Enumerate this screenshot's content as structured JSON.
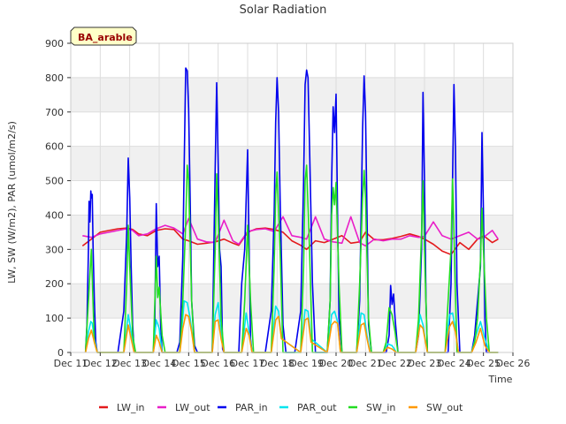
{
  "chart_data": {
    "type": "line",
    "title": "Solar Radiation",
    "xlabel": "Time",
    "ylabel": "LW, SW (W/m2), PAR (umol/m2/s)",
    "site_label": "BA_arable",
    "xlim": [
      11,
      26
    ],
    "ylim": [
      0,
      900
    ],
    "x_ticks": [
      11,
      12,
      13,
      14,
      15,
      16,
      17,
      18,
      19,
      20,
      21,
      22,
      23,
      24,
      25,
      26
    ],
    "x_tick_labels": [
      "Dec 11",
      "Dec 12",
      "Dec 13",
      "Dec 14",
      "Dec 15",
      "Dec 16",
      "Dec 17",
      "Dec 18",
      "Dec 19",
      "Dec 20",
      "Dec 21",
      "Dec 22",
      "Dec 23",
      "Dec 24",
      "Dec 25",
      "Dec 26"
    ],
    "y_ticks": [
      0,
      100,
      200,
      300,
      400,
      500,
      600,
      700,
      800,
      900
    ],
    "y_tick_labels": [
      "0",
      "100",
      "200",
      "300",
      "400",
      "500",
      "600",
      "700",
      "800",
      "900"
    ],
    "grid_bands": true,
    "legend_position": "bottom",
    "series": [
      {
        "name": "LW_in",
        "color": "#e31a1c",
        "x": [
          11.4,
          11.7,
          12.0,
          12.3,
          12.6,
          12.9,
          13.1,
          13.3,
          13.6,
          13.9,
          14.2,
          14.5,
          14.8,
          15.0,
          15.3,
          15.6,
          15.9,
          16.2,
          16.5,
          16.7,
          17.0,
          17.3,
          17.6,
          17.9,
          18.2,
          18.5,
          18.8,
          19.0,
          19.3,
          19.6,
          19.9,
          20.2,
          20.5,
          20.8,
          21.0,
          21.3,
          21.6,
          21.9,
          22.2,
          22.5,
          22.8,
          23.0,
          23.3,
          23.6,
          23.9,
          24.2,
          24.5,
          24.8,
          25.0,
          25.3,
          25.5
        ],
        "y": [
          310,
          330,
          350,
          355,
          360,
          362,
          358,
          345,
          340,
          355,
          360,
          358,
          330,
          325,
          315,
          318,
          322,
          330,
          318,
          312,
          350,
          360,
          362,
          358,
          350,
          325,
          312,
          300,
          325,
          320,
          330,
          340,
          318,
          322,
          350,
          328,
          328,
          332,
          338,
          345,
          338,
          330,
          315,
          295,
          285,
          320,
          300,
          330,
          340,
          320,
          330
        ]
      },
      {
        "name": "LW_out",
        "color": "#e91ec8",
        "x": [
          11.4,
          11.7,
          12.0,
          12.3,
          12.6,
          12.9,
          13.1,
          13.3,
          13.6,
          13.9,
          14.2,
          14.5,
          14.8,
          15.0,
          15.3,
          15.6,
          15.9,
          16.2,
          16.5,
          16.7,
          17.0,
          17.3,
          17.6,
          17.9,
          18.2,
          18.5,
          18.8,
          19.0,
          19.3,
          19.6,
          19.9,
          20.2,
          20.5,
          20.8,
          21.0,
          21.3,
          21.6,
          21.9,
          22.2,
          22.5,
          22.8,
          23.0,
          23.3,
          23.6,
          23.9,
          24.2,
          24.5,
          24.8,
          25.0,
          25.3,
          25.5
        ],
        "y": [
          340,
          335,
          345,
          350,
          355,
          360,
          355,
          340,
          345,
          360,
          370,
          362,
          345,
          390,
          330,
          322,
          320,
          385,
          325,
          315,
          352,
          358,
          360,
          352,
          395,
          340,
          335,
          330,
          395,
          330,
          322,
          318,
          395,
          320,
          310,
          330,
          325,
          330,
          330,
          340,
          335,
          338,
          380,
          340,
          330,
          340,
          350,
          330,
          335,
          355,
          330
        ]
      },
      {
        "name": "PAR_in",
        "color": "#0000ee",
        "x": [
          11.5,
          11.55,
          11.6,
          11.62,
          11.65,
          11.68,
          11.7,
          11.73,
          11.76,
          11.8,
          11.85,
          11.9,
          12.6,
          12.8,
          12.9,
          12.95,
          13.0,
          13.05,
          13.1,
          13.15,
          13.2,
          13.3,
          13.4,
          13.8,
          13.85,
          13.9,
          13.95,
          14.0,
          14.05,
          14.1,
          14.2,
          14.6,
          14.7,
          14.8,
          14.85,
          14.9,
          14.95,
          15.0,
          15.05,
          15.1,
          15.2,
          15.3,
          15.4,
          15.8,
          15.85,
          15.9,
          15.95,
          16.0,
          16.05,
          16.1,
          16.15,
          16.2,
          16.3,
          16.7,
          16.8,
          16.9,
          17.0,
          17.05,
          17.1,
          17.15,
          17.2,
          17.3,
          17.6,
          17.8,
          17.9,
          17.95,
          18.0,
          18.05,
          18.1,
          18.2,
          18.3,
          18.6,
          18.8,
          18.9,
          18.95,
          19.0,
          19.05,
          19.1,
          19.2,
          19.3,
          19.6,
          19.7,
          19.8,
          19.85,
          19.9,
          19.95,
          20.0,
          20.05,
          20.1,
          20.2,
          20.3,
          20.6,
          20.7,
          20.8,
          20.9,
          20.95,
          21.0,
          21.05,
          21.1,
          21.2,
          21.3,
          21.6,
          21.7,
          21.8,
          21.85,
          21.9,
          21.95,
          22.0,
          22.1,
          22.2,
          22.6,
          22.7,
          22.8,
          22.9,
          22.95,
          23.0,
          23.05,
          23.1,
          23.2,
          23.5,
          23.6,
          23.7,
          23.8,
          23.9,
          23.95,
          24.0,
          24.05,
          24.1,
          24.2,
          24.5,
          24.6,
          24.7,
          24.8,
          24.9,
          24.95,
          25.0,
          25.05,
          25.1,
          25.2,
          25.4,
          25.5
        ],
        "y": [
          0,
          80,
          300,
          440,
          380,
          470,
          450,
          460,
          300,
          150,
          30,
          0,
          0,
          120,
          350,
          566,
          450,
          250,
          80,
          5,
          0,
          0,
          0,
          0,
          80,
          433,
          250,
          280,
          80,
          0,
          0,
          0,
          30,
          280,
          550,
          828,
          820,
          710,
          450,
          150,
          20,
          0,
          0,
          0,
          280,
          533,
          785,
          550,
          300,
          250,
          10,
          0,
          0,
          0,
          200,
          300,
          590,
          300,
          40,
          0,
          0,
          0,
          0,
          120,
          400,
          670,
          800,
          700,
          450,
          80,
          0,
          0,
          120,
          500,
          780,
          822,
          800,
          600,
          200,
          0,
          0,
          0,
          150,
          500,
          715,
          640,
          752,
          400,
          100,
          0,
          0,
          0,
          0,
          150,
          650,
          805,
          700,
          400,
          80,
          0,
          0,
          0,
          0,
          50,
          195,
          140,
          170,
          100,
          0,
          0,
          0,
          0,
          50,
          300,
          757,
          500,
          150,
          0,
          0,
          0,
          0,
          0,
          0,
          200,
          500,
          780,
          600,
          200,
          0,
          0,
          0,
          50,
          150,
          250,
          640,
          400,
          100,
          0,
          0,
          0,
          0
        ]
      },
      {
        "name": "PAR_out",
        "color": "#00e5ee",
        "x": [
          11.5,
          11.6,
          11.68,
          11.73,
          11.8,
          11.9,
          12.8,
          12.95,
          13.05,
          13.15,
          13.8,
          13.9,
          14.0,
          14.1,
          14.7,
          14.85,
          14.95,
          15.05,
          15.2,
          15.8,
          15.9,
          16.0,
          16.1,
          16.2,
          16.8,
          16.95,
          17.05,
          17.15,
          17.8,
          17.95,
          18.05,
          18.15,
          18.8,
          18.95,
          19.05,
          19.15,
          19.7,
          19.85,
          19.95,
          20.05,
          20.15,
          20.7,
          20.85,
          20.95,
          21.05,
          21.15,
          21.6,
          21.75,
          21.9,
          22.05,
          22.7,
          22.85,
          22.95,
          23.1,
          23.7,
          23.85,
          23.95,
          24.05,
          24.15,
          24.6,
          24.75,
          24.9,
          25.05,
          25.2,
          25.5
        ],
        "y": [
          0,
          60,
          90,
          85,
          40,
          0,
          0,
          110,
          60,
          0,
          0,
          95,
          70,
          0,
          0,
          150,
          145,
          100,
          0,
          0,
          110,
          145,
          60,
          0,
          0,
          115,
          60,
          0,
          0,
          135,
          120,
          40,
          0,
          125,
          120,
          40,
          0,
          110,
          120,
          90,
          0,
          0,
          115,
          110,
          50,
          0,
          0,
          25,
          20,
          0,
          0,
          110,
          80,
          0,
          0,
          110,
          115,
          70,
          0,
          0,
          50,
          90,
          40,
          0,
          0
        ]
      },
      {
        "name": "SW_in",
        "color": "#22dd22",
        "x": [
          11.5,
          11.6,
          11.65,
          11.7,
          11.75,
          11.8,
          11.9,
          12.8,
          12.9,
          12.95,
          13.0,
          13.1,
          13.2,
          13.8,
          13.9,
          13.95,
          14.0,
          14.1,
          14.2,
          14.7,
          14.8,
          14.9,
          14.95,
          15.0,
          15.1,
          15.2,
          15.8,
          15.9,
          15.95,
          16.0,
          16.1,
          16.2,
          16.8,
          16.9,
          17.0,
          17.1,
          17.2,
          17.8,
          17.9,
          17.95,
          18.0,
          18.1,
          18.2,
          18.8,
          18.9,
          18.95,
          19.0,
          19.1,
          19.2,
          19.7,
          19.8,
          19.85,
          19.9,
          19.95,
          20.0,
          20.1,
          20.2,
          20.7,
          20.8,
          20.9,
          20.95,
          21.0,
          21.1,
          21.2,
          21.6,
          21.7,
          21.8,
          21.9,
          22.0,
          22.1,
          22.7,
          22.8,
          22.9,
          22.95,
          23.0,
          23.1,
          23.7,
          23.8,
          23.9,
          23.95,
          24.0,
          24.1,
          24.6,
          24.7,
          24.8,
          24.9,
          24.95,
          25.0,
          25.1,
          25.2,
          25.5
        ],
        "y": [
          0,
          150,
          230,
          300,
          160,
          30,
          0,
          0,
          200,
          370,
          250,
          50,
          0,
          0,
          280,
          160,
          190,
          50,
          0,
          0,
          150,
          380,
          545,
          500,
          150,
          0,
          0,
          300,
          520,
          400,
          100,
          0,
          0,
          150,
          370,
          150,
          0,
          0,
          250,
          460,
          525,
          300,
          0,
          0,
          250,
          500,
          545,
          300,
          0,
          0,
          150,
          400,
          480,
          430,
          495,
          200,
          0,
          0,
          200,
          450,
          530,
          450,
          100,
          0,
          0,
          30,
          130,
          110,
          60,
          0,
          0,
          100,
          350,
          500,
          300,
          0,
          0,
          150,
          300,
          505,
          350,
          0,
          0,
          30,
          100,
          270,
          420,
          300,
          100,
          0,
          0
        ]
      },
      {
        "name": "SW_out",
        "color": "#ff9900",
        "x": [
          11.5,
          11.6,
          11.7,
          11.8,
          11.9,
          12.8,
          12.95,
          13.05,
          13.15,
          13.8,
          13.9,
          14.0,
          14.1,
          14.7,
          14.8,
          14.9,
          15.0,
          15.1,
          15.2,
          15.8,
          15.9,
          16.0,
          16.1,
          16.2,
          16.8,
          16.95,
          17.05,
          17.15,
          17.8,
          17.95,
          18.05,
          18.15,
          18.8,
          18.95,
          19.05,
          19.15,
          19.7,
          19.85,
          19.95,
          20.05,
          20.15,
          20.7,
          20.85,
          20.95,
          21.05,
          21.15,
          21.6,
          21.75,
          21.9,
          22.05,
          22.7,
          22.85,
          22.95,
          23.1,
          23.7,
          23.85,
          23.95,
          24.05,
          24.15,
          24.6,
          24.75,
          24.9,
          25.05,
          25.2,
          25.5
        ],
        "y": [
          0,
          40,
          65,
          30,
          0,
          0,
          80,
          40,
          0,
          0,
          50,
          30,
          0,
          0,
          70,
          110,
          105,
          60,
          0,
          0,
          90,
          95,
          40,
          0,
          0,
          70,
          50,
          0,
          0,
          95,
          105,
          40,
          0,
          95,
          100,
          30,
          0,
          80,
          90,
          85,
          0,
          0,
          80,
          85,
          40,
          0,
          0,
          15,
          10,
          0,
          0,
          80,
          70,
          0,
          0,
          75,
          90,
          60,
          0,
          0,
          30,
          70,
          20,
          0,
          0
        ]
      }
    ]
  }
}
